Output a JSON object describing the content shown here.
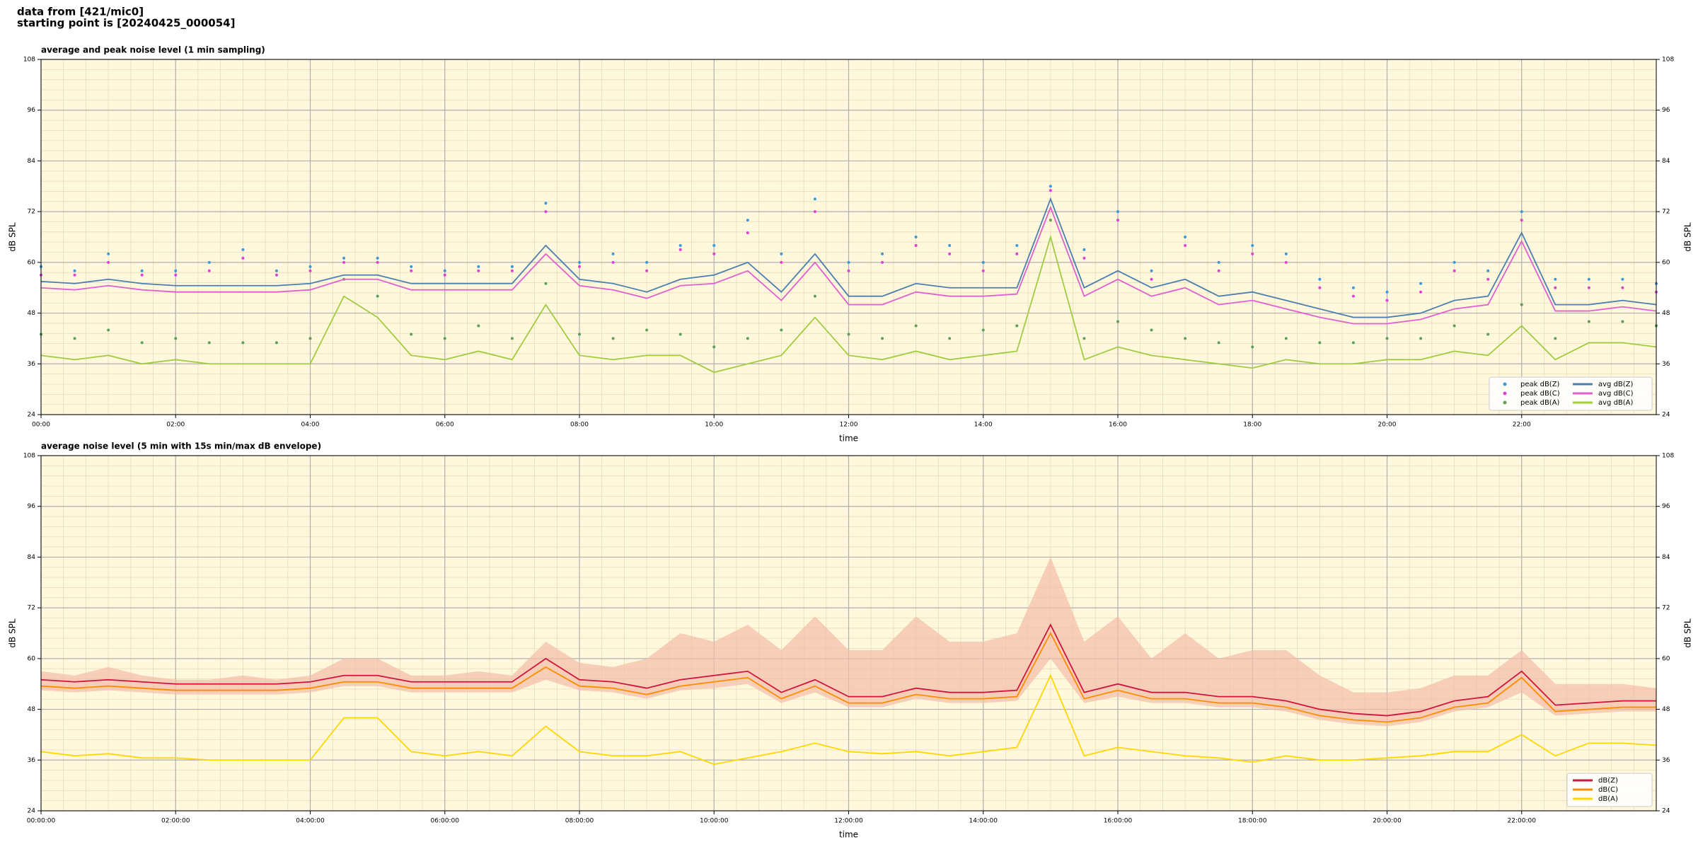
{
  "header": {
    "lines": [
      "data from [421/mic0]",
      "starting point is [20240425_000054]"
    ]
  },
  "chart_data": [
    {
      "type": "line",
      "title": "average and peak noise level (1 min sampling)",
      "xlabel": "time",
      "ylabel": "dB SPL",
      "background": "#fff8dc",
      "grid": true,
      "legend": "lower right",
      "legend_columns": 2,
      "x": [
        0,
        0.5,
        1,
        1.5,
        2,
        2.5,
        3,
        3.5,
        4,
        4.5,
        5,
        5.5,
        6,
        6.5,
        7,
        7.5,
        8,
        8.5,
        9,
        9.5,
        10,
        10.5,
        11,
        11.5,
        12,
        12.5,
        13,
        13.5,
        14,
        14.5,
        15,
        15.5,
        16,
        16.5,
        17,
        17.5,
        18,
        18.5,
        19,
        19.5,
        20,
        20.5,
        21,
        21.5,
        22,
        22.5,
        23,
        23.5,
        24
      ],
      "xlim": [
        0,
        24
      ],
      "xticks": [
        {
          "value": 0,
          "label": "00:00"
        },
        {
          "value": 2,
          "label": "02:00"
        },
        {
          "value": 4,
          "label": "04:00"
        },
        {
          "value": 6,
          "label": "06:00"
        },
        {
          "value": 8,
          "label": "08:00"
        },
        {
          "value": 10,
          "label": "10:00"
        },
        {
          "value": 12,
          "label": "12:00"
        },
        {
          "value": 14,
          "label": "14:00"
        },
        {
          "value": 16,
          "label": "16:00"
        },
        {
          "value": 18,
          "label": "18:00"
        },
        {
          "value": 20,
          "label": "20:00"
        },
        {
          "value": 22,
          "label": "22:00"
        }
      ],
      "ylim": [
        24,
        108
      ],
      "yticks": [
        24,
        36,
        48,
        60,
        72,
        84,
        96,
        108
      ],
      "series": [
        {
          "name": "peak dB(Z)",
          "marker": "dot",
          "color": "#3a9ad9",
          "values": [
            59,
            58,
            62,
            58,
            58,
            60,
            63,
            58,
            59,
            61,
            61,
            59,
            58,
            59,
            59,
            74,
            60,
            62,
            60,
            64,
            64,
            70,
            62,
            75,
            60,
            62,
            66,
            64,
            60,
            64,
            78,
            63,
            72,
            58,
            66,
            60,
            64,
            62,
            56,
            54,
            53,
            55,
            60,
            58,
            72,
            56,
            56,
            56,
            55
          ]
        },
        {
          "name": "peak dB(C)",
          "marker": "dot",
          "color": "#e040d8",
          "values": [
            57,
            57,
            60,
            57,
            57,
            58,
            61,
            57,
            58,
            60,
            60,
            58,
            57,
            58,
            58,
            72,
            59,
            60,
            58,
            63,
            62,
            67,
            60,
            72,
            58,
            60,
            64,
            62,
            58,
            62,
            77,
            61,
            70,
            56,
            64,
            58,
            62,
            60,
            54,
            52,
            51,
            53,
            58,
            56,
            70,
            54,
            54,
            54,
            53
          ]
        },
        {
          "name": "peak dB(A)",
          "marker": "dot",
          "color": "#5aa05a",
          "values": [
            43,
            42,
            44,
            41,
            42,
            41,
            41,
            41,
            42,
            56,
            52,
            43,
            42,
            45,
            42,
            55,
            43,
            42,
            44,
            43,
            40,
            42,
            44,
            52,
            43,
            42,
            45,
            42,
            44,
            45,
            70,
            42,
            46,
            44,
            42,
            41,
            40,
            42,
            41,
            41,
            42,
            42,
            45,
            43,
            50,
            42,
            46,
            46,
            45
          ]
        },
        {
          "name": "avg dB(Z)",
          "marker": "line",
          "color": "#4a7fb0",
          "values": [
            55.5,
            55,
            56,
            55,
            54.5,
            54.5,
            54.5,
            54.5,
            55,
            57,
            57,
            55,
            55,
            55,
            55,
            64,
            56,
            55,
            53,
            56,
            57,
            60,
            53,
            62,
            52,
            52,
            55,
            54,
            54,
            54,
            75,
            54,
            58,
            54,
            56,
            52,
            53,
            51,
            49,
            47,
            47,
            48,
            51,
            52,
            67,
            50,
            50,
            51,
            50
          ]
        },
        {
          "name": "avg dB(C)",
          "marker": "line",
          "color": "#e060d0",
          "values": [
            54,
            53.5,
            54.5,
            53.5,
            53,
            53,
            53,
            53,
            53.5,
            56,
            56,
            53.5,
            53.5,
            53.5,
            53.5,
            62,
            54.5,
            53.5,
            51.5,
            54.5,
            55,
            58,
            51,
            60,
            50,
            50,
            53,
            52,
            52,
            52.5,
            73,
            52,
            56,
            52,
            54,
            50,
            51,
            49,
            47,
            45.5,
            45.5,
            46.5,
            49,
            50,
            65,
            48.5,
            48.5,
            49.5,
            48.5
          ]
        },
        {
          "name": "avg dB(A)",
          "marker": "line",
          "color": "#a0cc40",
          "values": [
            38,
            37,
            38,
            36,
            37,
            36,
            36,
            36,
            36,
            52,
            47,
            38,
            37,
            39,
            37,
            50,
            38,
            37,
            38,
            38,
            34,
            36,
            38,
            47,
            38,
            37,
            39,
            37,
            38,
            39,
            66,
            37,
            40,
            38,
            37,
            36,
            35,
            37,
            36,
            36,
            37,
            37,
            39,
            38,
            45,
            37,
            41,
            41,
            40
          ]
        }
      ]
    },
    {
      "type": "line",
      "title": "average noise level (5 min with 15s min/max dB envelope)",
      "xlabel": "time",
      "ylabel": "dB SPL",
      "background": "#fff8dc",
      "grid": true,
      "legend": "lower right",
      "legend_columns": 1,
      "x": [
        0,
        0.5,
        1,
        1.5,
        2,
        2.5,
        3,
        3.5,
        4,
        4.5,
        5,
        5.5,
        6,
        6.5,
        7,
        7.5,
        8,
        8.5,
        9,
        9.5,
        10,
        10.5,
        11,
        11.5,
        12,
        12.5,
        13,
        13.5,
        14,
        14.5,
        15,
        15.5,
        16,
        16.5,
        17,
        17.5,
        18,
        18.5,
        19,
        19.5,
        20,
        20.5,
        21,
        21.5,
        22,
        22.5,
        23,
        23.5,
        24
      ],
      "xlim": [
        0,
        24
      ],
      "xticks": [
        {
          "value": 0,
          "label": "00:00:00"
        },
        {
          "value": 2,
          "label": "02:00:00"
        },
        {
          "value": 4,
          "label": "04:00:00"
        },
        {
          "value": 6,
          "label": "06:00:00"
        },
        {
          "value": 8,
          "label": "08:00:00"
        },
        {
          "value": 10,
          "label": "10:00:00"
        },
        {
          "value": 12,
          "label": "12:00:00"
        },
        {
          "value": 14,
          "label": "14:00:00"
        },
        {
          "value": 16,
          "label": "16:00:00"
        },
        {
          "value": 18,
          "label": "18:00:00"
        },
        {
          "value": 20,
          "label": "20:00:00"
        },
        {
          "value": 22,
          "label": "22:00:00"
        }
      ],
      "ylim": [
        24,
        108
      ],
      "yticks": [
        24,
        36,
        48,
        60,
        72,
        84,
        96,
        108
      ],
      "envelope": {
        "color": "#f4bca8",
        "low": [
          52.5,
          52,
          52.5,
          52,
          51.5,
          51.5,
          51.5,
          51.5,
          52,
          53.5,
          53.5,
          52,
          52,
          52,
          52,
          55,
          52.5,
          52,
          50.5,
          52.5,
          53,
          54,
          49.5,
          52,
          48.5,
          48.5,
          50.5,
          49.5,
          49.5,
          50,
          60,
          49.5,
          51,
          49.5,
          49.5,
          48.5,
          48.5,
          47.5,
          45.5,
          44.5,
          44,
          45,
          47.5,
          48.5,
          52,
          46.5,
          47,
          47.5,
          47.5
        ],
        "high": [
          57,
          56,
          58,
          56,
          55,
          55,
          56,
          55,
          56,
          60,
          60,
          56,
          56,
          57,
          56,
          64,
          59,
          58,
          60,
          66,
          64,
          68,
          62,
          70,
          62,
          62,
          70,
          64,
          64,
          66,
          84,
          64,
          70,
          60,
          66,
          60,
          62,
          62,
          56,
          52,
          52,
          53,
          56,
          56,
          62,
          54,
          54,
          54,
          53
        ]
      },
      "series": [
        {
          "name": "dB(Z)",
          "marker": "line",
          "color": "#d0143c",
          "values": [
            55,
            54.5,
            55,
            54.5,
            54,
            54,
            54,
            54,
            54.5,
            56,
            56,
            54.5,
            54.5,
            54.5,
            54.5,
            60,
            55,
            54.5,
            53,
            55,
            56,
            57,
            52,
            55,
            51,
            51,
            53,
            52,
            52,
            52.5,
            68,
            52,
            54,
            52,
            52,
            51,
            51,
            50,
            48,
            47,
            46.5,
            47.5,
            50,
            51,
            57,
            49,
            49.5,
            50,
            50
          ]
        },
        {
          "name": "dB(C)",
          "marker": "line",
          "color": "#ff8c00",
          "values": [
            53.5,
            53,
            53.5,
            53,
            52.5,
            52.5,
            52.5,
            52.5,
            53,
            54.5,
            54.5,
            53,
            53,
            53,
            53,
            58,
            53.5,
            53,
            51.5,
            53.5,
            54.5,
            55.5,
            50.5,
            53.5,
            49.5,
            49.5,
            51.5,
            50.5,
            50.5,
            51,
            66,
            50.5,
            52.5,
            50.5,
            50.5,
            49.5,
            49.5,
            48.5,
            46.5,
            45.5,
            45,
            46,
            48.5,
            49.5,
            55.5,
            47.5,
            48,
            48.5,
            48.5
          ]
        },
        {
          "name": "dB(A)",
          "marker": "line",
          "color": "#ffd700",
          "values": [
            38,
            37,
            37.5,
            36.5,
            36.5,
            36,
            36,
            36,
            36,
            46,
            46,
            38,
            37,
            38,
            37,
            44,
            38,
            37,
            37,
            38,
            35,
            36.5,
            38,
            40,
            38,
            37.5,
            38,
            37,
            38,
            39,
            56,
            37,
            39,
            38,
            37,
            36.5,
            35.5,
            37,
            36,
            36,
            36.5,
            37,
            38,
            38,
            42,
            37,
            40,
            40,
            39.5
          ]
        }
      ]
    }
  ]
}
